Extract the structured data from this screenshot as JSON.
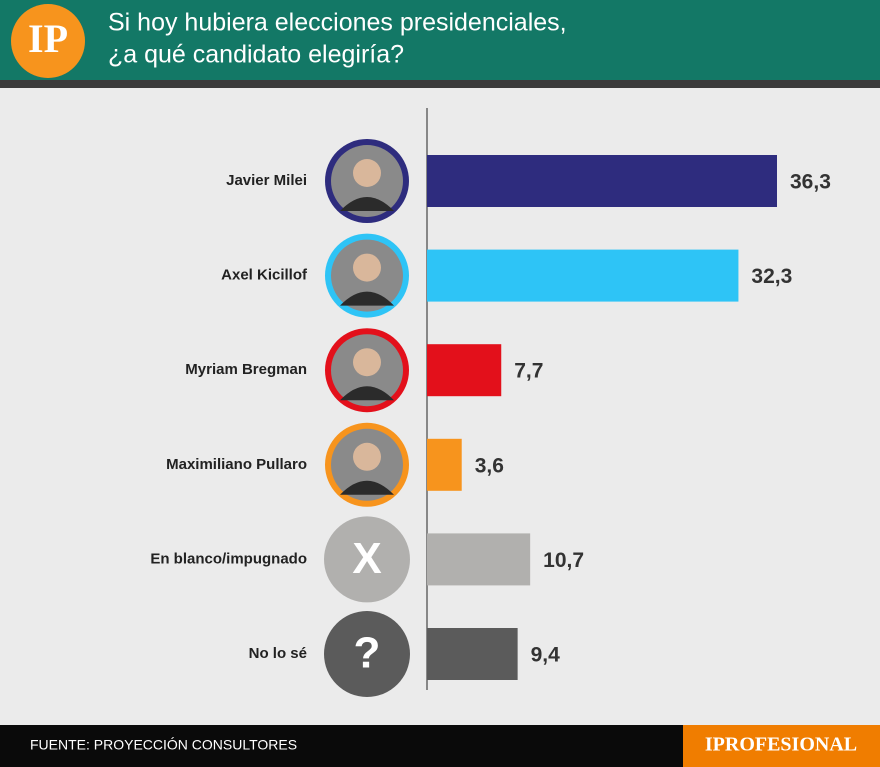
{
  "chart_data": {
    "type": "bar",
    "logo": "IP",
    "title": "Si hoy hubiera elecciones presidenciales,",
    "subtitle": "¿a qué candidato elegiría?",
    "categories": [
      "Javier Milei",
      "Axel Kicillof",
      "Myriam Bregman",
      "Maximiliano Pullaro",
      "En blanco/impugnado",
      "No lo sé"
    ],
    "values": [
      36.3,
      32.3,
      7.7,
      3.6,
      10.7,
      9.4
    ],
    "value_labels": [
      "36,3",
      "32,3",
      "7,7",
      "3,6",
      "10,7",
      "9,4"
    ],
    "colors": [
      "#2e2c7e",
      "#2ec4f6",
      "#e3101b",
      "#f7941d",
      "#b1b0ae",
      "#5b5b5b"
    ],
    "icons": [
      null,
      null,
      null,
      null,
      "X",
      "?"
    ],
    "source": "FUENTE: PROYECCIÓN CONSULTORES",
    "brand": "IPROFESIONAL"
  }
}
